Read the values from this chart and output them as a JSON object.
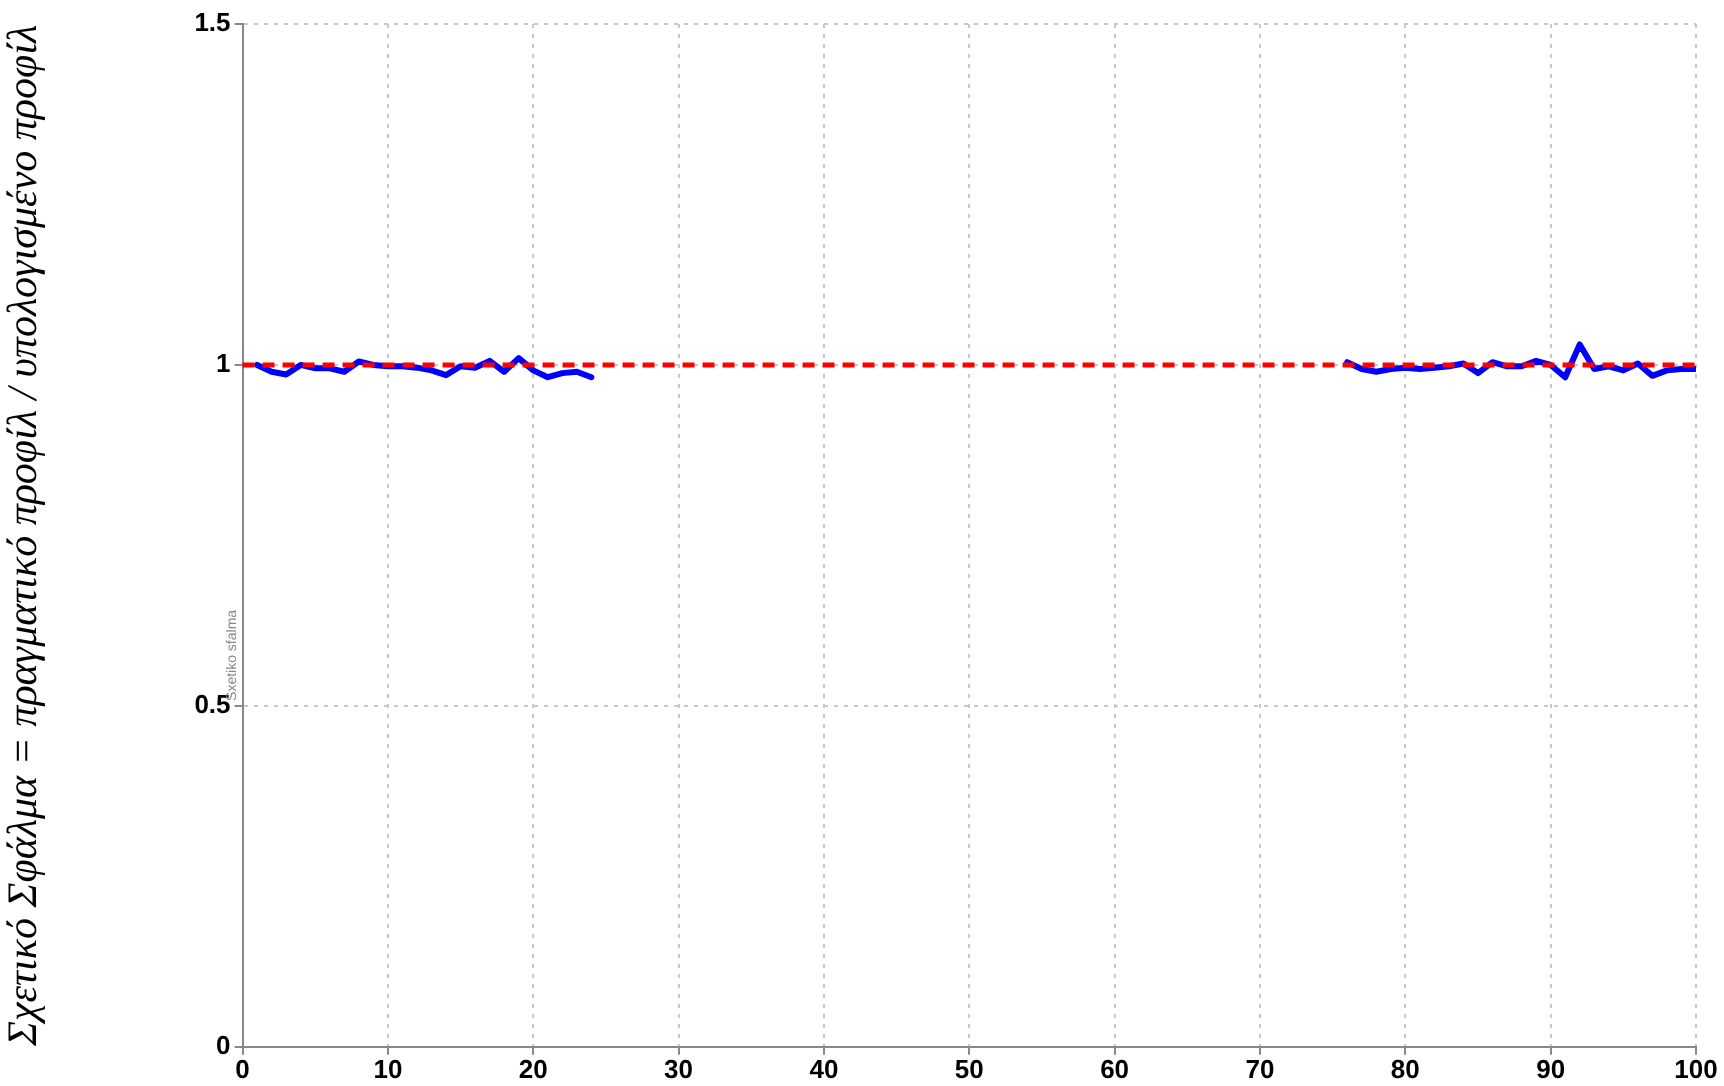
{
  "chart_data": {
    "type": "line",
    "ylabel": "Σχετικό Σφάλμα = πραγματικό προφίλ / υπολογισμένο προφίλ",
    "annotations": [
      "Sxetiko sfalma"
    ],
    "xlim": [
      0,
      100
    ],
    "xticks": [
      0,
      10,
      20,
      30,
      40,
      50,
      60,
      70,
      80,
      90,
      100
    ],
    "ylim": [
      0,
      1.5
    ],
    "yticks": [
      0,
      0.5,
      1,
      1.5
    ],
    "grid": true,
    "line_style": "solid",
    "marker": "none",
    "series": [
      {
        "color": "#0000ff",
        "x": [
          1,
          2,
          3,
          4,
          5,
          6,
          7,
          8,
          9,
          10,
          11,
          12,
          13,
          14,
          15,
          16,
          17,
          18,
          19,
          20,
          21,
          22,
          23,
          24,
          50,
          76,
          77,
          78,
          79,
          80,
          81,
          82,
          83,
          84,
          85,
          86,
          87,
          88,
          89,
          90,
          91,
          92,
          93,
          94,
          95,
          96,
          97,
          98,
          99,
          100
        ],
        "values": [
          1.0,
          0.99,
          0.986,
          1.0,
          0.995,
          0.995,
          0.99,
          1.005,
          1.0,
          0.998,
          0.998,
          0.996,
          0.992,
          0.985,
          0.998,
          0.996,
          1.006,
          0.99,
          1.01,
          0.992,
          0.982,
          0.988,
          0.99,
          0.982,
          null,
          1.004,
          0.994,
          0.99,
          0.994,
          0.996,
          0.994,
          0.996,
          0.998,
          1.002,
          0.988,
          1.004,
          0.998,
          0.998,
          1.006,
          1.0,
          0.982,
          1.03,
          0.994,
          0.998,
          0.992,
          1.002,
          0.984,
          0.992,
          0.994,
          0.994
        ]
      }
    ],
    "ref_lines": [
      {
        "axis": "y",
        "value": 1,
        "color": "#ff0000",
        "line_style": "dashed"
      }
    ]
  }
}
